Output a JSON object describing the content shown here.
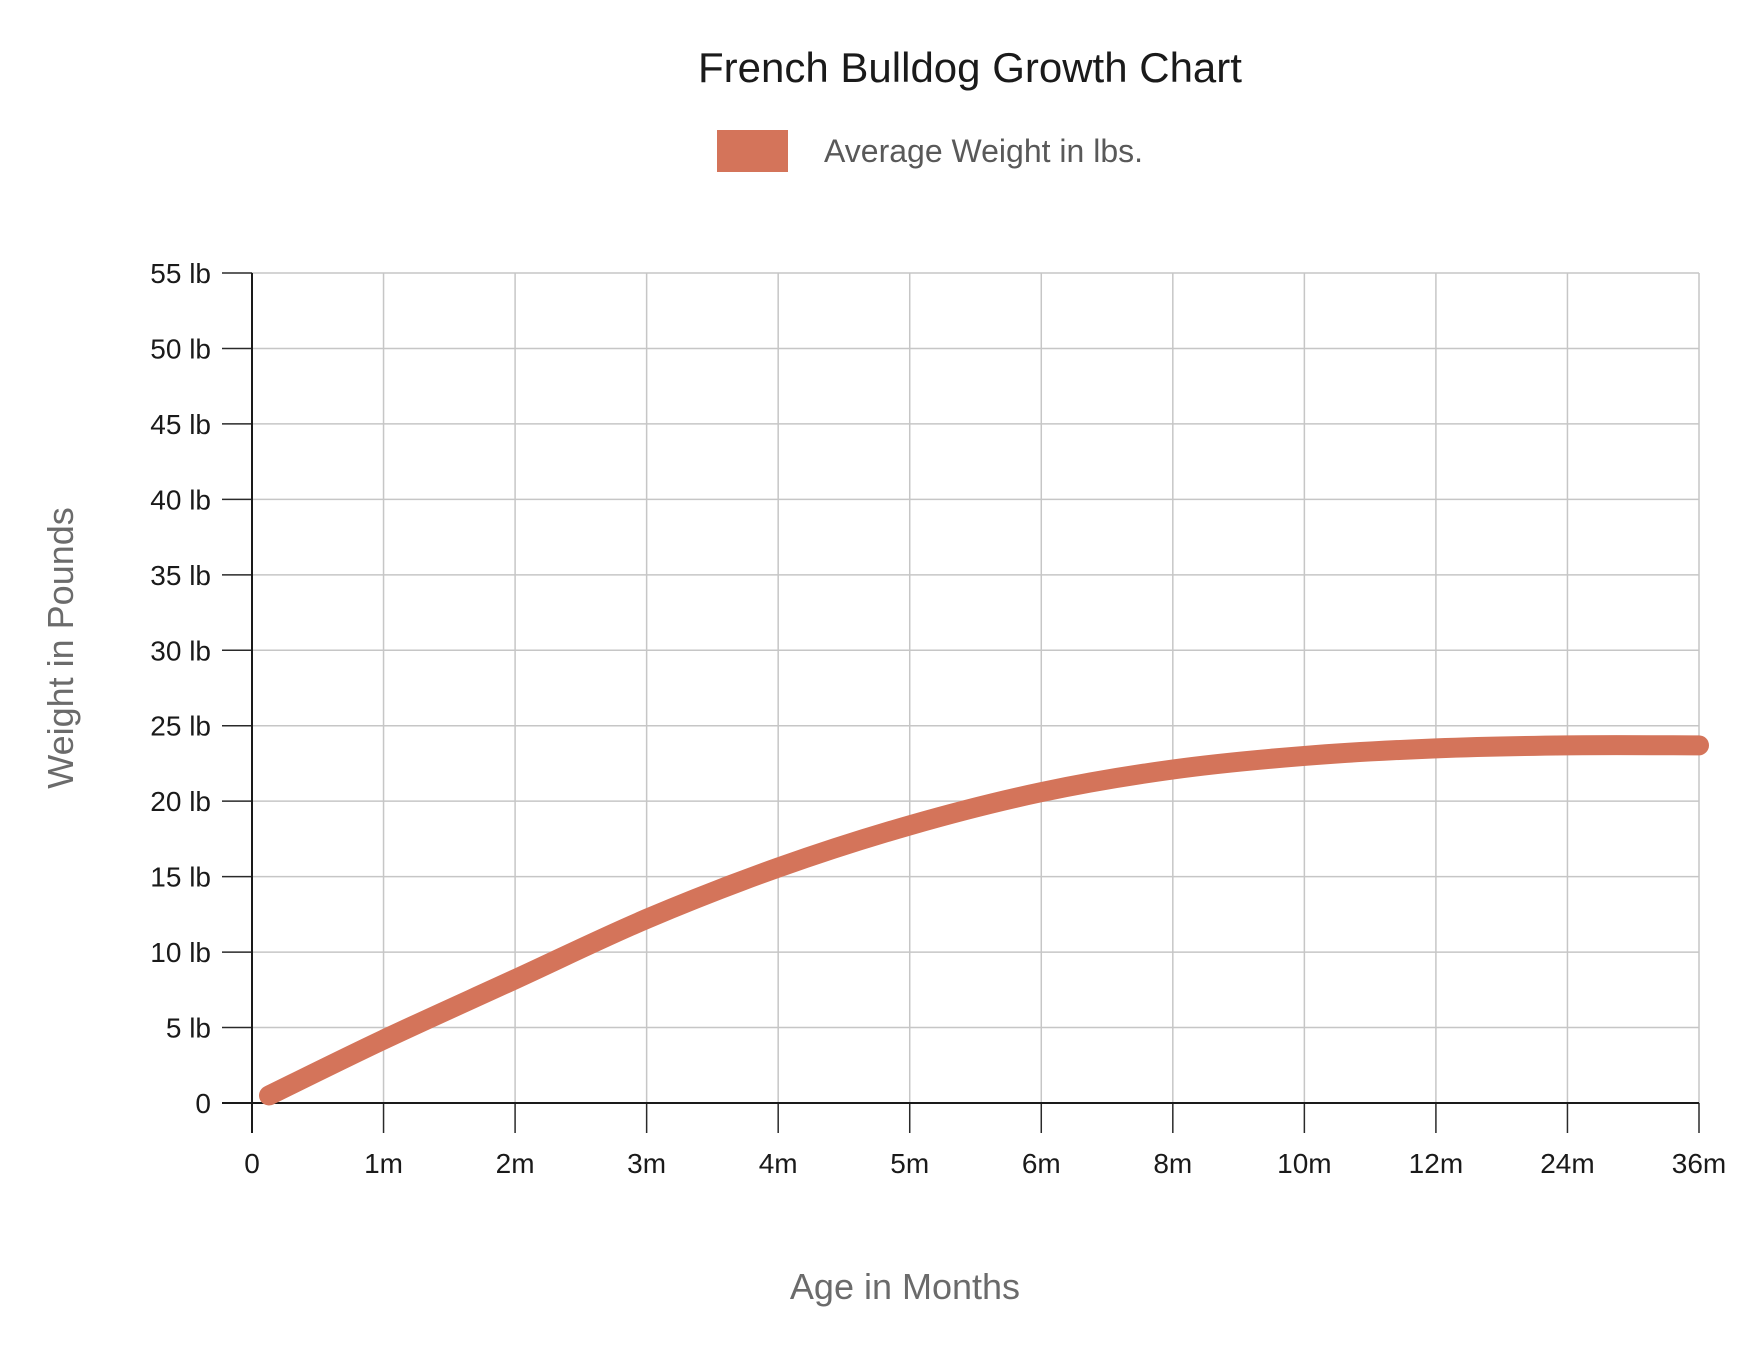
{
  "chart_data": {
    "type": "line",
    "title": "French Bulldog Growth Chart",
    "xlabel": "Age in Months",
    "ylabel": "Weight in Pounds",
    "x_ticks": [
      "0",
      "1m",
      "2m",
      "3m",
      "4m",
      "5m",
      "6m",
      "8m",
      "10m",
      "12m",
      "24m",
      "36m"
    ],
    "y_ticks": [
      "0",
      "5 lb",
      "10 lb",
      "15 lb",
      "20 lb",
      "25 lb",
      "30 lb",
      "35 lb",
      "40 lb",
      "45 lb",
      "50 lb",
      "55 lb"
    ],
    "ylim": [
      0,
      55
    ],
    "grid": true,
    "legend_position": "top-center",
    "series": [
      {
        "name": "Average Weight in lbs.",
        "color": "#d4745a",
        "points": [
          {
            "x": "0",
            "y": 0.5
          },
          {
            "x": "1m",
            "y": 4.2
          },
          {
            "x": "2m",
            "y": 8.2
          },
          {
            "x": "3m",
            "y": 12.2
          },
          {
            "x": "4m",
            "y": 15.6
          },
          {
            "x": "5m",
            "y": 18.4
          },
          {
            "x": "6m",
            "y": 20.6
          },
          {
            "x": "8m",
            "y": 22.1
          },
          {
            "x": "10m",
            "y": 23.0
          },
          {
            "x": "12m",
            "y": 23.5
          },
          {
            "x": "24m",
            "y": 23.7
          },
          {
            "x": "36m",
            "y": 23.7
          }
        ]
      }
    ]
  }
}
